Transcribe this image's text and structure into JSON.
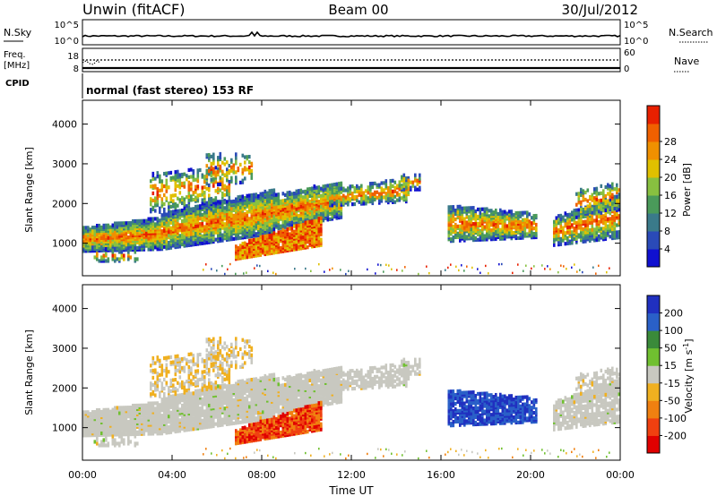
{
  "header": {
    "station": "Unwin (fitACF)",
    "beam": "Beam 00",
    "date": "30/Jul/2012"
  },
  "top_panels": {
    "nsky_label": "N.Sky",
    "nsky_ticks": [
      "10^5",
      "10^0"
    ],
    "nsearch_label": "N.Search",
    "nsearch_ticks": [
      "10^5",
      "10^0"
    ],
    "freq_label_1": "Freq.",
    "freq_label_2": "[MHz]",
    "freq_ticks": [
      "18",
      "8"
    ],
    "nave_label": "Nave",
    "nave_ticks": [
      "60",
      "0"
    ],
    "cpid_label": "CPID",
    "cpid_text": "normal (fast stereo) 153 RF"
  },
  "chart_data": [
    {
      "type": "heatmap",
      "name": "power-panel",
      "ylabel": "Slant Range [km]",
      "xlabel": "",
      "yticks": [
        1000,
        2000,
        3000,
        4000
      ],
      "ylim": [
        180,
        4600
      ],
      "colorbar_label": "Power [dB]",
      "colorbar_ticks": [
        4,
        8,
        12,
        16,
        20,
        24,
        28
      ],
      "colorbar_colors": [
        "#1010d0",
        "#2a4ab8",
        "#3a7a8a",
        "#4a9a5a",
        "#88c040",
        "#e0c000",
        "#f09000",
        "#f06000",
        "#e82000"
      ]
    },
    {
      "type": "heatmap",
      "name": "velocity-panel",
      "ylabel": "Slant Range [km]",
      "xlabel": "Time UT",
      "yticks": [
        1000,
        2000,
        3000,
        4000
      ],
      "ylim": [
        180,
        4600
      ],
      "xticks": [
        "00:00",
        "04:00",
        "08:00",
        "12:00",
        "16:00",
        "20:00",
        "00:00"
      ],
      "colorbar_label": "Velocity [m s^-1]",
      "colorbar_ticks": [
        200,
        100,
        50,
        15,
        -15,
        -50,
        -100,
        -200
      ],
      "colorbar_colors": [
        "#2030c0",
        "#2a60c8",
        "#3a8a3a",
        "#70c030",
        "#c8c8c0",
        "#f0b020",
        "#f08010",
        "#f04010",
        "#e00000"
      ]
    }
  ]
}
